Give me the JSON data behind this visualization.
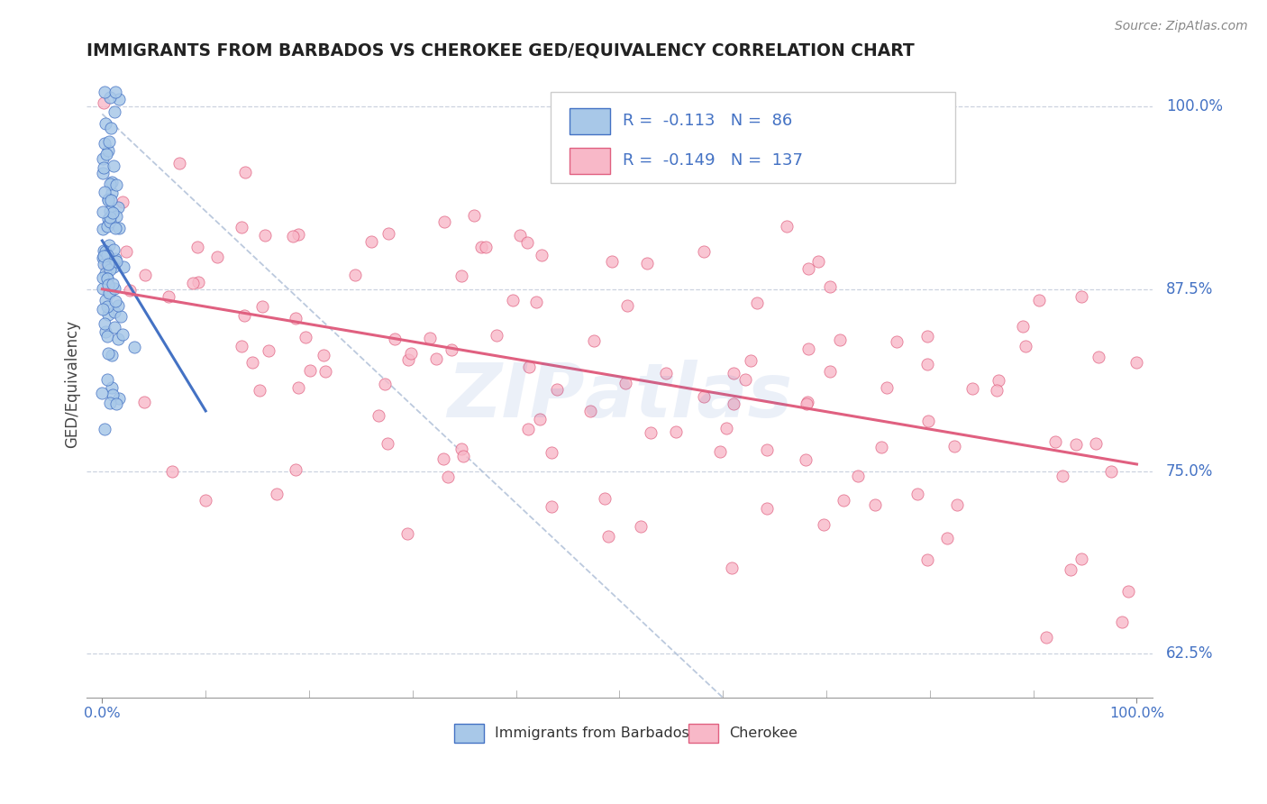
{
  "title": "IMMIGRANTS FROM BARBADOS VS CHEROKEE GED/EQUIVALENCY CORRELATION CHART",
  "source": "Source: ZipAtlas.com",
  "ylabel": "GED/Equivalency",
  "legend_label_blue": "Immigrants from Barbados",
  "legend_label_pink": "Cherokee",
  "R_blue": -0.113,
  "N_blue": 86,
  "R_pink": -0.149,
  "N_pink": 137,
  "x_min": 0.0,
  "x_max": 1.0,
  "y_min": 0.595,
  "y_max": 1.025,
  "yticks": [
    0.625,
    0.75,
    0.875,
    1.0
  ],
  "ytick_labels": [
    "62.5%",
    "75.0%",
    "87.5%",
    "100.0%"
  ],
  "color_blue": "#a8c8e8",
  "color_pink": "#f8b8c8",
  "line_blue": "#4472c4",
  "line_pink": "#e06080",
  "title_color": "#222222",
  "axis_color": "#4472c4",
  "grid_color": "#c0c8d8",
  "ref_line_color": "#b0c0d8"
}
